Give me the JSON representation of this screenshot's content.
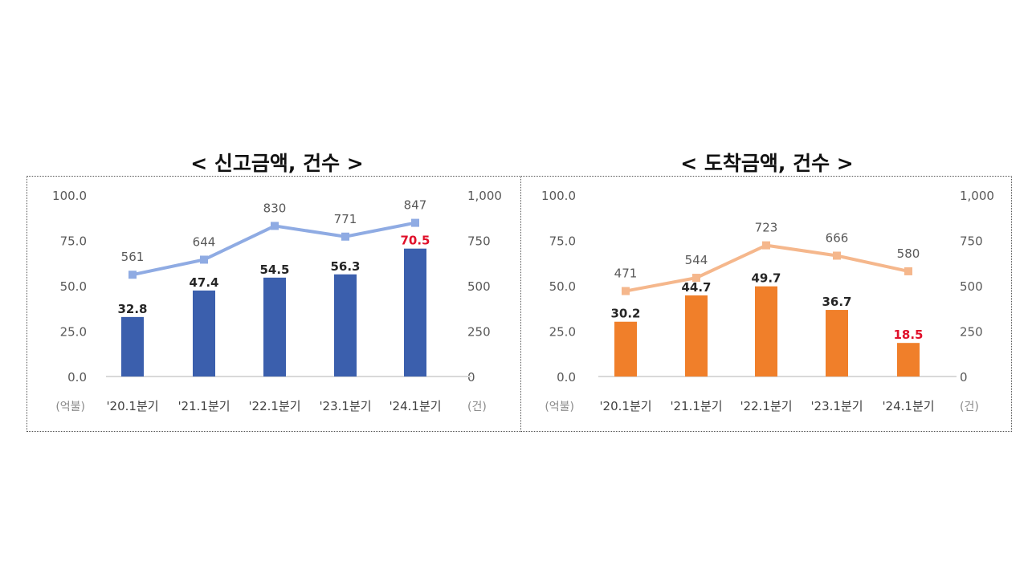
{
  "chart_data": [
    {
      "type": "bar+line",
      "title": "< 신고금액, 건수 >",
      "categories": [
        "'20.1분기",
        "'21.1분기",
        "'22.1분기",
        "'23.1분기",
        "'24.1분기"
      ],
      "series": [
        {
          "name": "신고금액",
          "type": "bar",
          "axis": "left",
          "unit": "억불",
          "values": [
            32.8,
            47.4,
            54.5,
            56.3,
            70.5
          ],
          "labels": [
            "32.8",
            "47.4",
            "54.5",
            "56.3",
            "70.5"
          ],
          "color": "#3b5fad",
          "highlight_index": 4,
          "highlight_color": "#e0102a"
        },
        {
          "name": "신고건수",
          "type": "line",
          "axis": "right",
          "unit": "건",
          "values": [
            561,
            644,
            830,
            771,
            847
          ],
          "labels": [
            "561",
            "644",
            "830",
            "771",
            "847"
          ],
          "color": "#8fabe3"
        }
      ],
      "left_axis": {
        "label": "(억불)",
        "ticks": [
          "0.0",
          "25.0",
          "50.0",
          "75.0",
          "100.0"
        ],
        "ylim": [
          0,
          100
        ]
      },
      "right_axis": {
        "label": "(건)",
        "ticks": [
          "0",
          "250",
          "500",
          "750",
          "1,000"
        ],
        "ylim": [
          0,
          1000
        ]
      },
      "grid": false
    },
    {
      "type": "bar+line",
      "title": "< 도착금액, 건수 >",
      "categories": [
        "'20.1분기",
        "'21.1분기",
        "'22.1분기",
        "'23.1분기",
        "'24.1분기"
      ],
      "series": [
        {
          "name": "도착금액",
          "type": "bar",
          "axis": "left",
          "unit": "억불",
          "values": [
            30.2,
            44.7,
            49.7,
            36.7,
            18.5
          ],
          "labels": [
            "30.2",
            "44.7",
            "49.7",
            "36.7",
            "18.5"
          ],
          "color": "#f07f2a",
          "highlight_index": 4,
          "highlight_color": "#e0102a"
        },
        {
          "name": "도착건수",
          "type": "line",
          "axis": "right",
          "unit": "건",
          "values": [
            471,
            544,
            723,
            666,
            580
          ],
          "labels": [
            "471",
            "544",
            "723",
            "666",
            "580"
          ],
          "color": "#f5b78c"
        }
      ],
      "left_axis": {
        "label": "(억불)",
        "ticks": [
          "0.0",
          "25.0",
          "50.0",
          "75.0",
          "100.0"
        ],
        "ylim": [
          0,
          100
        ]
      },
      "right_axis": {
        "label": "(건)",
        "ticks": [
          "0",
          "250",
          "500",
          "750",
          "1,000"
        ],
        "ylim": [
          0,
          1000
        ]
      },
      "grid": false
    }
  ]
}
